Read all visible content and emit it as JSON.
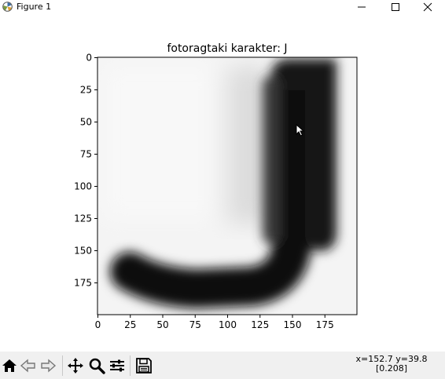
{
  "window": {
    "title": "Figure 1",
    "controls": [
      "minimize",
      "maximize",
      "close"
    ]
  },
  "toolbar": {
    "buttons": [
      "home-icon",
      "back-arrow-icon",
      "forward-arrow-icon",
      "pan-icon",
      "zoom-icon",
      "subplots-icon",
      "save-icon"
    ],
    "coordinates": "x=152.7 y=39.8",
    "pixel_value": "[0.208]"
  },
  "chart_data": {
    "type": "heatmap",
    "title": "fotoragtaki karakter: J",
    "colormap": "gray",
    "xlim": [
      0,
      200
    ],
    "ylim": [
      200,
      0
    ],
    "xticks": [
      0,
      25,
      50,
      75,
      100,
      125,
      150,
      175
    ],
    "yticks": [
      0,
      25,
      50,
      75,
      100,
      125,
      150,
      175
    ],
    "xlabel": "",
    "ylabel": "",
    "content": "grayscale image of the handwritten character J"
  }
}
